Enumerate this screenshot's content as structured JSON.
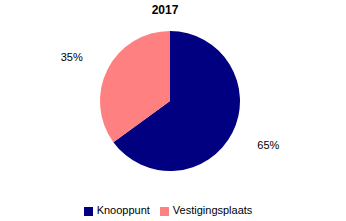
{
  "chart_data": {
    "type": "pie",
    "title": "2017",
    "categories": [
      "Knooppunt",
      "Vestigingsplaats"
    ],
    "values": [
      65,
      35
    ],
    "value_labels": [
      "65%",
      "35%"
    ],
    "colors": [
      "#000080",
      "#ff8080"
    ],
    "data_labels": true,
    "legend": "bottom"
  }
}
